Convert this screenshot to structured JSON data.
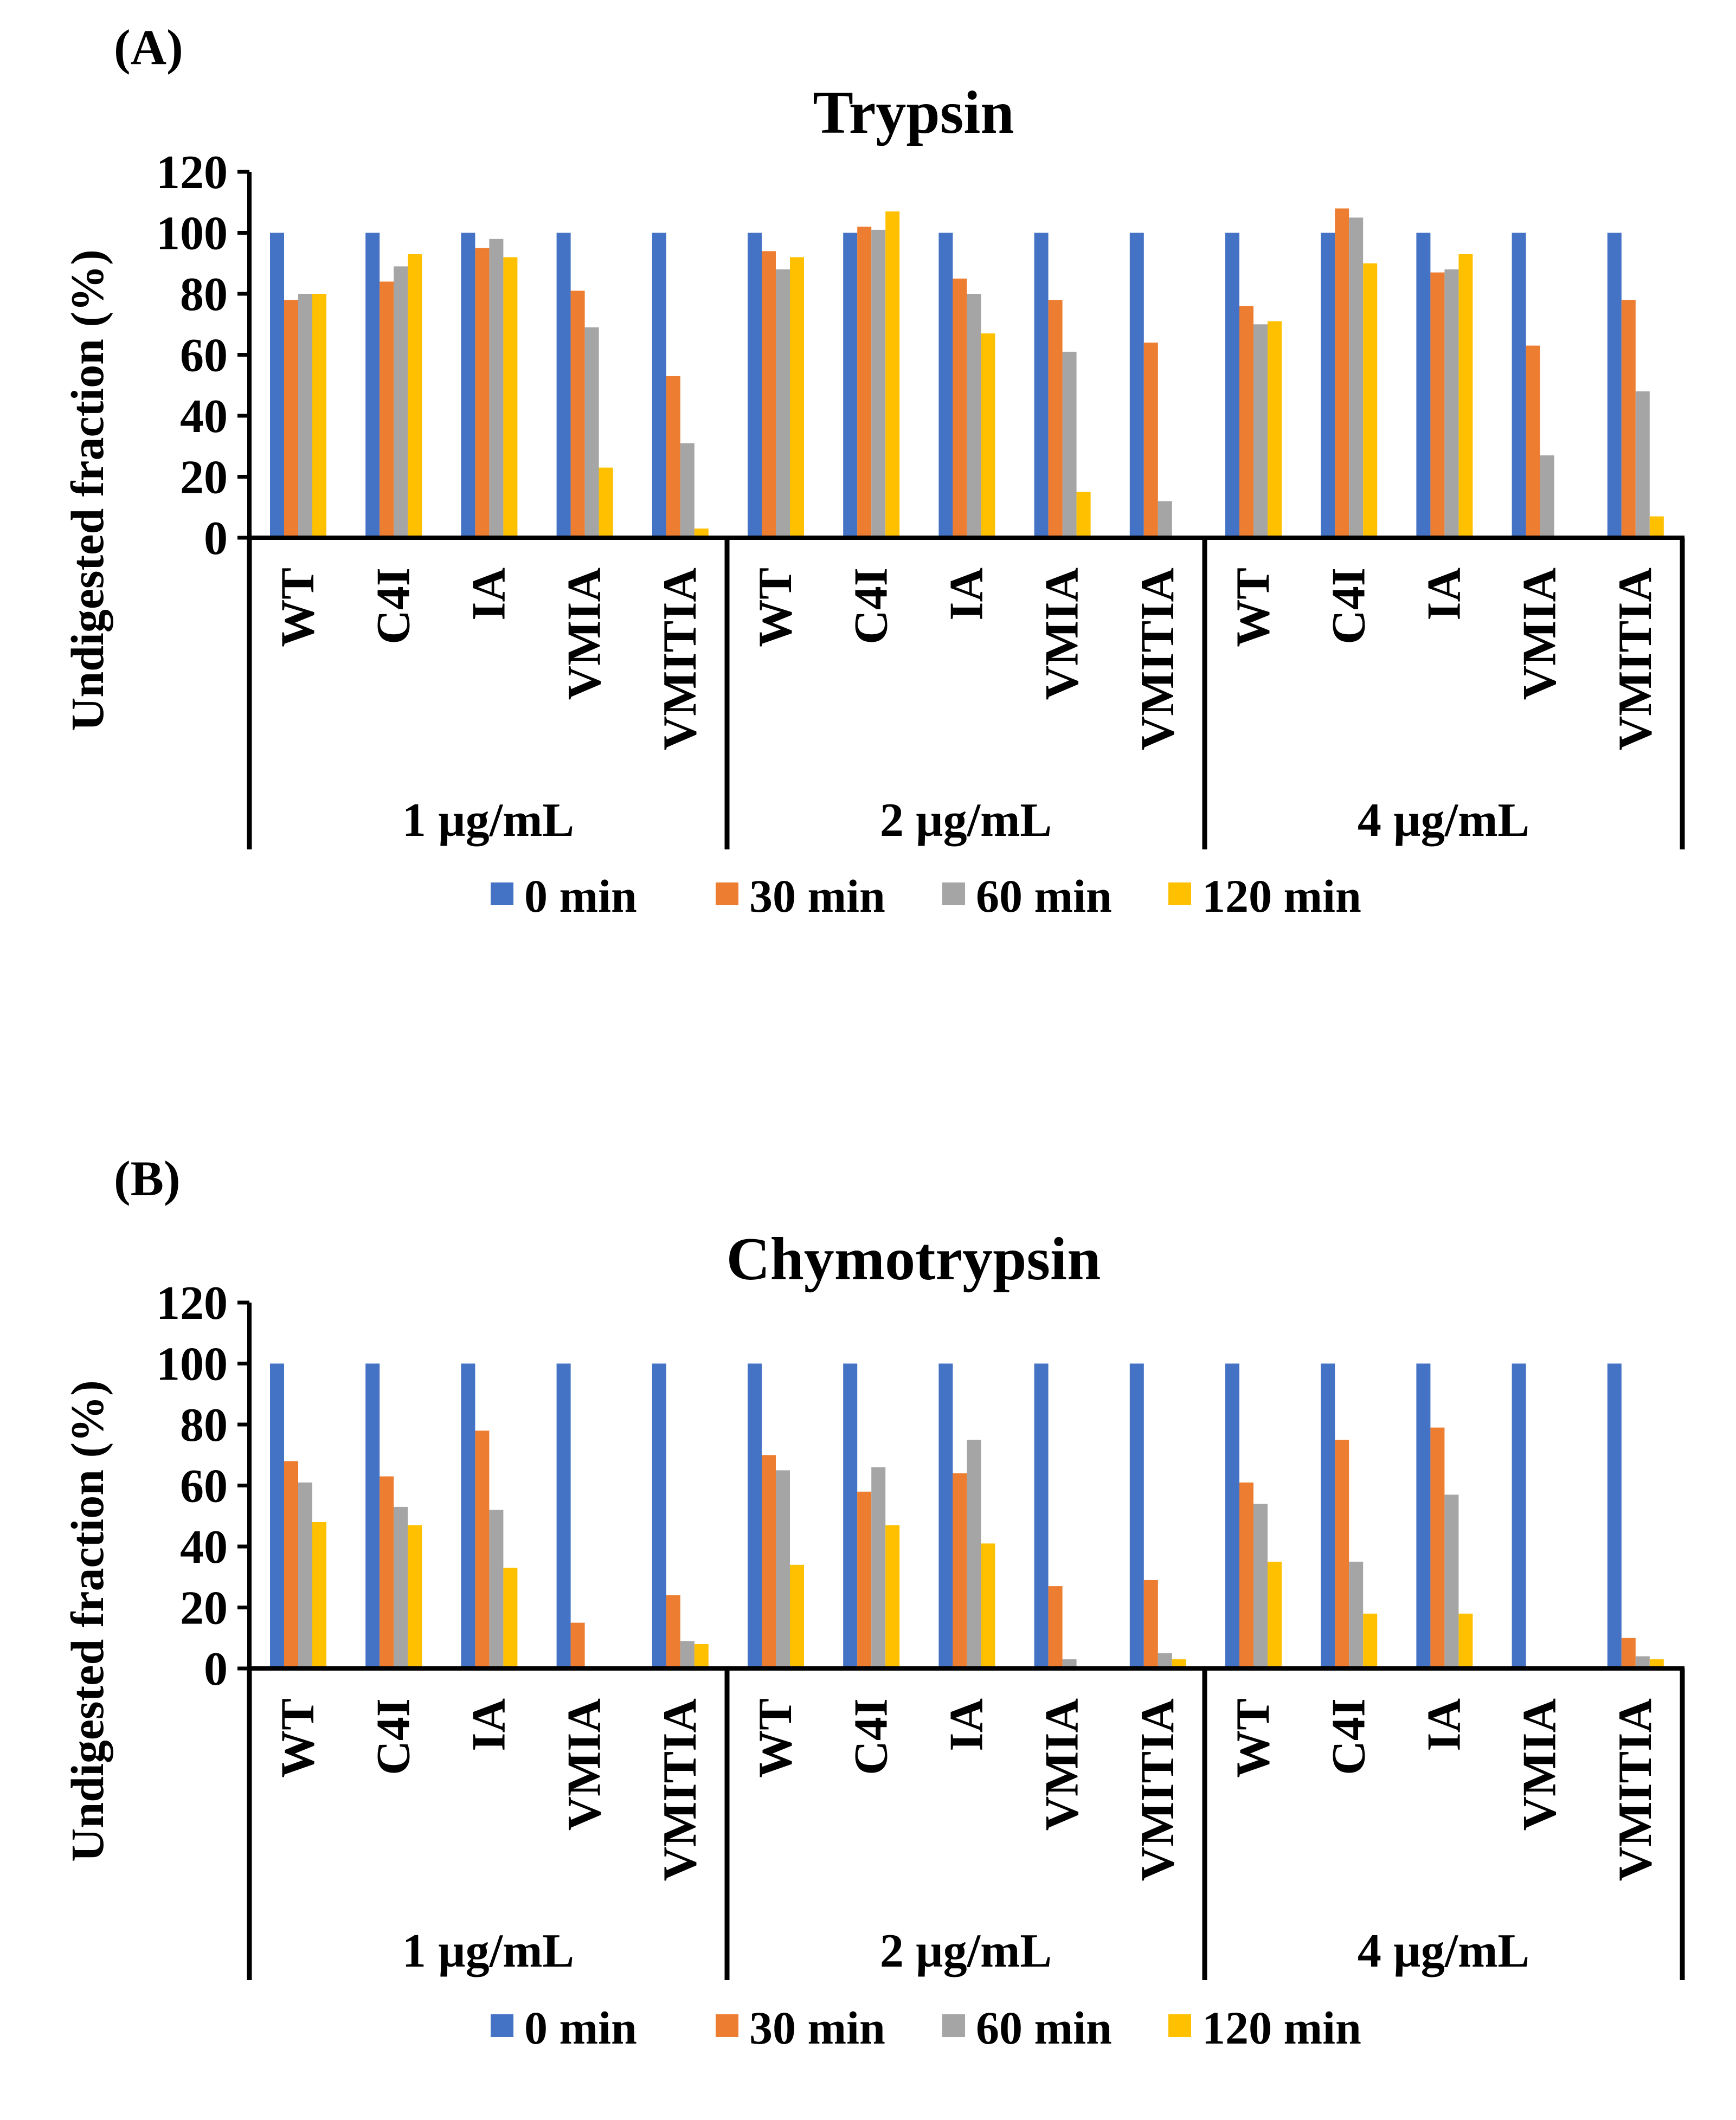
{
  "colors": {
    "0 min": "#4472C4",
    "30 min": "#ED7D31",
    "60 min": "#A5A5A5",
    "120 min": "#FFC000",
    "axis": "#000000"
  },
  "series_names": [
    "0 min",
    "30 min",
    "60 min",
    "120 min"
  ],
  "chart_data": [
    {
      "type": "bar",
      "panel_label": "(A)",
      "title": "Trypsin",
      "ylabel": "Undigested fraction (%)",
      "xlabel": "",
      "ylim": [
        0,
        120
      ],
      "yticks": [
        "0",
        "20",
        "40",
        "60",
        "80",
        "100",
        "120"
      ],
      "groups": [
        "1 µg/mL",
        "2 µg/mL",
        "4 µg/mL"
      ],
      "categories": [
        "WT",
        "C4I",
        "IA",
        "VMIA",
        "VMITIA",
        "WT",
        "C4I",
        "IA",
        "VMIA",
        "VMITIA",
        "WT",
        "C4I",
        "IA",
        "VMIA",
        "VMITIA"
      ],
      "legend_position": "bottom",
      "series": [
        {
          "name": "0 min",
          "values": [
            100,
            100,
            100,
            100,
            100,
            100,
            100,
            100,
            100,
            100,
            100,
            100,
            100,
            100,
            100
          ]
        },
        {
          "name": "30 min",
          "values": [
            78,
            84,
            95,
            81,
            53,
            94,
            102,
            85,
            78,
            64,
            76,
            108,
            87,
            63,
            78
          ]
        },
        {
          "name": "60 min",
          "values": [
            80,
            89,
            98,
            69,
            31,
            88,
            101,
            80,
            61,
            12,
            70,
            105,
            88,
            27,
            48
          ]
        },
        {
          "name": "120 min",
          "values": [
            80,
            93,
            92,
            23,
            3,
            92,
            107,
            67,
            15,
            0,
            71,
            90,
            93,
            0,
            7
          ]
        }
      ]
    },
    {
      "type": "bar",
      "panel_label": "(B)",
      "title": "Chymotrypsin",
      "ylabel": "Undigested fraction (%)",
      "xlabel": "",
      "ylim": [
        0,
        120
      ],
      "yticks": [
        "0",
        "20",
        "40",
        "60",
        "80",
        "100",
        "120"
      ],
      "groups": [
        "1 µg/mL",
        "2 µg/mL",
        "4 µg/mL"
      ],
      "categories": [
        "WT",
        "C4I",
        "IA",
        "VMIA",
        "VMITIA",
        "WT",
        "C4I",
        "IA",
        "VMIA",
        "VMITIA",
        "WT",
        "C4I",
        "IA",
        "VMIA",
        "VMITIA"
      ],
      "legend_position": "bottom",
      "series": [
        {
          "name": "0 min",
          "values": [
            100,
            100,
            100,
            100,
            100,
            100,
            100,
            100,
            100,
            100,
            100,
            100,
            100,
            100,
            100
          ]
        },
        {
          "name": "30 min",
          "values": [
            68,
            63,
            78,
            15,
            24,
            70,
            58,
            64,
            27,
            29,
            61,
            75,
            79,
            0,
            10
          ]
        },
        {
          "name": "60 min",
          "values": [
            61,
            53,
            52,
            0,
            9,
            65,
            66,
            75,
            3,
            5,
            54,
            35,
            57,
            0,
            4
          ]
        },
        {
          "name": "120 min",
          "values": [
            48,
            47,
            33,
            0,
            8,
            34,
            47,
            41,
            0,
            3,
            35,
            18,
            18,
            0,
            3
          ]
        }
      ]
    }
  ]
}
